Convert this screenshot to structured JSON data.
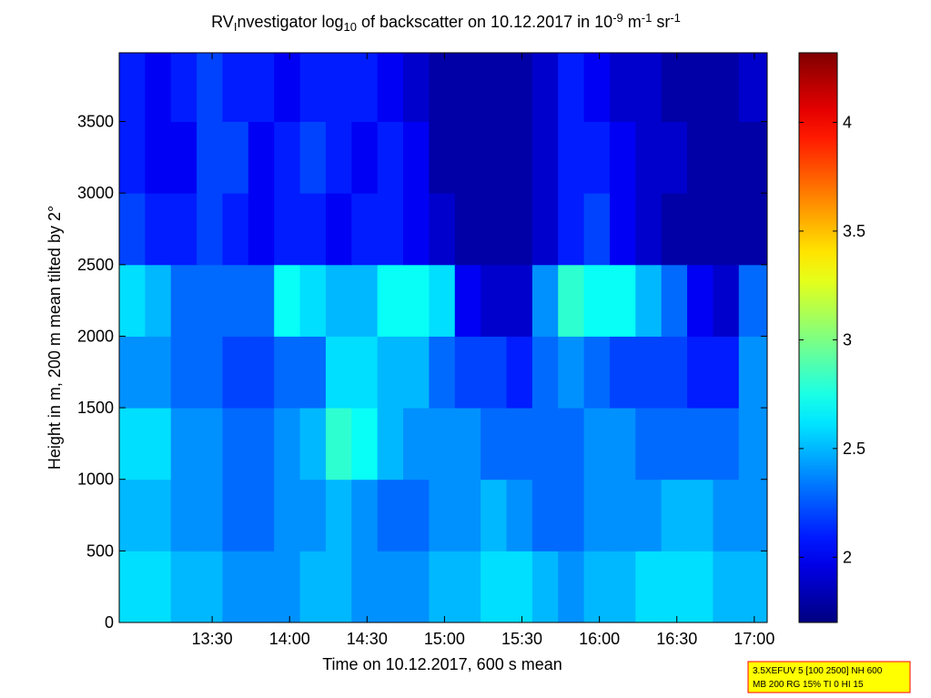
{
  "chart_data": {
    "type": "heatmap",
    "title": [
      {
        "text": "RV",
        "style": "normal"
      },
      {
        "text": "I",
        "style": "sub"
      },
      {
        "text": "nvestigator log",
        "style": "normal"
      },
      {
        "text": "10",
        "style": "sub"
      },
      {
        "text": " of backscatter on 10.12.2017 in 10",
        "style": "normal"
      },
      {
        "text": "-9",
        "style": "sup"
      },
      {
        "text": " m",
        "style": "normal"
      },
      {
        "text": "-1",
        "style": "sup"
      },
      {
        "text": " sr",
        "style": "normal"
      },
      {
        "text": "-1",
        "style": "sup"
      }
    ],
    "x_label": "Time on 10.12.2017, 600 s mean",
    "y_label": "Height in m, 200 m mean tilted by 2°",
    "x": [
      774,
      784,
      794,
      804,
      814,
      824,
      834,
      844,
      854,
      864,
      874,
      884,
      894,
      904,
      914,
      924,
      934,
      944,
      954,
      964,
      974,
      984,
      994,
      1004,
      1014,
      1025
    ],
    "y": [
      0,
      500,
      1000,
      1500,
      2000,
      2500,
      3000,
      3500,
      3980
    ],
    "z": [
      [
        2.6,
        2.6,
        2.5,
        2.5,
        2.4,
        2.4,
        2.4,
        2.5,
        2.5,
        2.4,
        2.4,
        2.4,
        2.5,
        2.5,
        2.6,
        2.6,
        2.5,
        2.4,
        2.5,
        2.5,
        2.6,
        2.6,
        2.6,
        2.5,
        2.5
      ],
      [
        2.5,
        2.5,
        2.4,
        2.4,
        2.3,
        2.3,
        2.4,
        2.4,
        2.5,
        2.4,
        2.3,
        2.3,
        2.4,
        2.4,
        2.5,
        2.4,
        2.3,
        2.3,
        2.4,
        2.4,
        2.4,
        2.5,
        2.5,
        2.4,
        2.4
      ],
      [
        2.6,
        2.6,
        2.4,
        2.4,
        2.3,
        2.3,
        2.4,
        2.5,
        2.8,
        2.7,
        2.5,
        2.4,
        2.4,
        2.4,
        2.3,
        2.3,
        2.3,
        2.3,
        2.4,
        2.4,
        2.3,
        2.3,
        2.3,
        2.3,
        2.4
      ],
      [
        2.4,
        2.4,
        2.3,
        2.3,
        2.2,
        2.2,
        2.3,
        2.3,
        2.6,
        2.6,
        2.5,
        2.5,
        2.3,
        2.2,
        2.2,
        2.1,
        2.3,
        2.4,
        2.3,
        2.2,
        2.2,
        2.2,
        2.1,
        2.1,
        2.4
      ],
      [
        2.6,
        2.5,
        2.3,
        2.3,
        2.3,
        2.3,
        2.7,
        2.6,
        2.5,
        2.5,
        2.7,
        2.7,
        2.6,
        2.0,
        1.9,
        1.9,
        2.4,
        2.8,
        2.7,
        2.7,
        2.5,
        2.3,
        2.0,
        1.9,
        2.3
      ],
      [
        2.2,
        2.1,
        2.1,
        2.2,
        2.1,
        2.0,
        2.1,
        2.1,
        2.0,
        2.1,
        2.1,
        2.0,
        1.9,
        1.8,
        1.8,
        1.8,
        1.9,
        2.1,
        2.2,
        2.0,
        1.9,
        1.8,
        1.8,
        1.8,
        1.8
      ],
      [
        2.1,
        2.0,
        2.0,
        2.2,
        2.2,
        2.0,
        2.1,
        2.2,
        2.1,
        2.0,
        2.1,
        2.0,
        1.8,
        1.8,
        1.8,
        1.8,
        1.9,
        2.1,
        2.1,
        2.0,
        1.9,
        1.9,
        1.8,
        1.8,
        1.8
      ],
      [
        2.1,
        2.0,
        2.1,
        2.2,
        2.1,
        2.1,
        2.0,
        2.1,
        2.1,
        2.1,
        2.0,
        1.9,
        1.8,
        1.8,
        1.8,
        1.8,
        1.9,
        2.1,
        2.0,
        1.9,
        1.9,
        1.8,
        1.8,
        1.8,
        1.9
      ]
    ],
    "xlim": [
      774,
      1025
    ],
    "ylim": [
      0,
      3980
    ],
    "xticks": [
      {
        "value": 810,
        "label": "13:30"
      },
      {
        "value": 840,
        "label": "14:00"
      },
      {
        "value": 870,
        "label": "14:30"
      },
      {
        "value": 900,
        "label": "15:00"
      },
      {
        "value": 930,
        "label": "15:30"
      },
      {
        "value": 960,
        "label": "16:00"
      },
      {
        "value": 990,
        "label": "16:30"
      },
      {
        "value": 1020,
        "label": "17:00"
      }
    ],
    "yticks": [
      0,
      500,
      1000,
      1500,
      2000,
      2500,
      3000,
      3500
    ],
    "colormap": "jet",
    "clim": [
      1.7,
      4.32
    ],
    "cticks": [
      2,
      2.5,
      3,
      3.5,
      4
    ],
    "info_box": [
      "3.5XEFUV 5 [100 2500] NH 600",
      "MB 200 RG 15% TI 0 HI 15"
    ]
  }
}
